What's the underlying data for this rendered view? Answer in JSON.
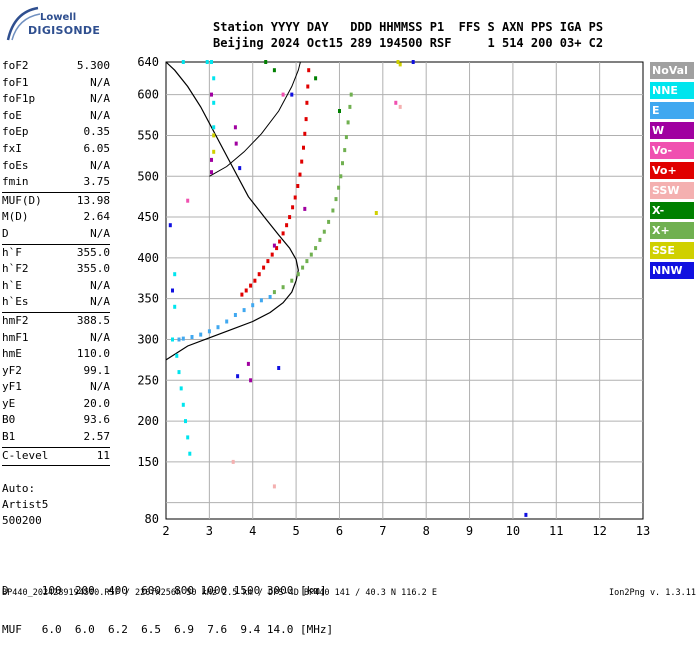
{
  "logo": {
    "line1": "Lowell",
    "line2": "DIGISONDE"
  },
  "header": {
    "line1": "Station YYYY DAY   DDD HHMMSS P1  FFS S AXN PPS IGA PS",
    "line2": "Beijing 2024 Oct15 289 194500 RSF     1 514 200 03+ C2"
  },
  "params_group1": [
    {
      "label": "foF2",
      "value": "5.300"
    },
    {
      "label": "foF1",
      "value": "N/A"
    },
    {
      "label": "foF1p",
      "value": "N/A"
    },
    {
      "label": "foE",
      "value": "N/A"
    },
    {
      "label": "foEp",
      "value": "0.35"
    },
    {
      "label": "fxI",
      "value": "6.05"
    },
    {
      "label": "foEs",
      "value": "N/A"
    },
    {
      "label": "fmin",
      "value": "3.75"
    }
  ],
  "params_group2": [
    {
      "label": "MUF(D)",
      "value": "13.98"
    },
    {
      "label": "M(D)",
      "value": "2.64"
    },
    {
      "label": "D",
      "value": "N/A"
    }
  ],
  "params_group3": [
    {
      "label": "h`F",
      "value": "355.0"
    },
    {
      "label": "h`F2",
      "value": "355.0"
    },
    {
      "label": "h`E",
      "value": "N/A"
    },
    {
      "label": "h`Es",
      "value": "N/A"
    }
  ],
  "params_group4": [
    {
      "label": "hmF2",
      "value": "388.5"
    },
    {
      "label": "hmF1",
      "value": "N/A"
    },
    {
      "label": "hmE",
      "value": "110.0"
    },
    {
      "label": "yF2",
      "value": "99.1"
    },
    {
      "label": "yF1",
      "value": "N/A"
    },
    {
      "label": "yE",
      "value": "20.0"
    },
    {
      "label": "B0",
      "value": "93.6"
    },
    {
      "label": "B1",
      "value": "2.57"
    }
  ],
  "params_group5": [
    {
      "label": "C-level",
      "value": "11"
    }
  ],
  "auto": {
    "line1": "Auto:",
    "line2": "Artist5",
    "line3": "500200"
  },
  "legend": [
    {
      "label": "NoVal",
      "color": "#a0a0a0"
    },
    {
      "label": "NNE",
      "color": "#00e5ee"
    },
    {
      "label": "E",
      "color": "#40a8f0"
    },
    {
      "label": "W",
      "color": "#a000a0"
    },
    {
      "label": "Vo-",
      "color": "#f050b0"
    },
    {
      "label": "Vo+",
      "color": "#e00000"
    },
    {
      "label": "SSW",
      "color": "#f4b0b0"
    },
    {
      "label": "X-",
      "color": "#008000"
    },
    {
      "label": "X+",
      "color": "#70b050"
    },
    {
      "label": "SSE",
      "color": "#d0d000"
    },
    {
      "label": "NNW",
      "color": "#1010e0"
    }
  ],
  "footer": {
    "dist_row": "D     100  200  400  600  800 1000 1500 3000 [km]",
    "muf_row": "MUF   6.0  6.0  6.2  6.5  6.9  7.6  9.4 14.0 [MHz]",
    "file_line": "BP440_2024289194500.RSF / 220fx256h 50 kHz 2.5 km / DPS-4D BP440 141 / 40.3 N 116.2 E",
    "version": "Ion2Png v. 1.3.11"
  },
  "chart_data": {
    "type": "scatter",
    "xlabel": "",
    "ylabel": "",
    "x_ticks": [
      2,
      3,
      4,
      5,
      6,
      7,
      8,
      9,
      10,
      11,
      12,
      13
    ],
    "y_ticks": [
      80,
      150,
      200,
      250,
      300,
      350,
      400,
      450,
      500,
      550,
      600,
      640
    ],
    "xlim": [
      2,
      13
    ],
    "ylim": [
      80,
      640
    ],
    "grid": true,
    "series": [
      {
        "name": "Vo+",
        "color": "#e00000",
        "points": [
          [
            3.75,
            355
          ],
          [
            3.85,
            360
          ],
          [
            3.95,
            366
          ],
          [
            4.05,
            372
          ],
          [
            4.15,
            380
          ],
          [
            4.25,
            388
          ],
          [
            4.35,
            396
          ],
          [
            4.45,
            404
          ],
          [
            4.55,
            412
          ],
          [
            4.62,
            420
          ],
          [
            4.7,
            430
          ],
          [
            4.78,
            440
          ],
          [
            4.85,
            450
          ],
          [
            4.92,
            462
          ],
          [
            4.98,
            474
          ],
          [
            5.04,
            488
          ],
          [
            5.09,
            502
          ],
          [
            5.13,
            518
          ],
          [
            5.17,
            535
          ],
          [
            5.2,
            552
          ],
          [
            5.23,
            570
          ],
          [
            5.25,
            590
          ],
          [
            5.27,
            610
          ],
          [
            5.29,
            630
          ]
        ]
      },
      {
        "name": "X+",
        "color": "#70b050",
        "points": [
          [
            4.5,
            358
          ],
          [
            4.7,
            364
          ],
          [
            4.9,
            372
          ],
          [
            5.05,
            380
          ],
          [
            5.15,
            388
          ],
          [
            5.25,
            396
          ],
          [
            5.35,
            404
          ],
          [
            5.45,
            412
          ],
          [
            5.55,
            422
          ],
          [
            5.65,
            432
          ],
          [
            5.75,
            444
          ],
          [
            5.85,
            458
          ],
          [
            5.92,
            472
          ],
          [
            5.98,
            486
          ],
          [
            6.03,
            500
          ],
          [
            6.07,
            516
          ],
          [
            6.12,
            532
          ],
          [
            6.16,
            548
          ],
          [
            6.2,
            566
          ],
          [
            6.24,
            585
          ],
          [
            6.27,
            600
          ]
        ]
      },
      {
        "name": "E",
        "color": "#40a8f0",
        "points": [
          [
            2.3,
            300
          ],
          [
            2.4,
            301
          ],
          [
            2.6,
            303
          ],
          [
            2.8,
            306
          ],
          [
            3.0,
            310
          ],
          [
            3.2,
            315
          ],
          [
            3.4,
            322
          ],
          [
            3.6,
            330
          ],
          [
            3.8,
            336
          ],
          [
            4.0,
            342
          ],
          [
            4.2,
            348
          ],
          [
            4.4,
            352
          ]
        ]
      },
      {
        "name": "NNE",
        "color": "#00e5ee",
        "points": [
          [
            2.15,
            300
          ],
          [
            2.25,
            280
          ],
          [
            2.3,
            260
          ],
          [
            2.35,
            240
          ],
          [
            2.4,
            220
          ],
          [
            2.45,
            200
          ],
          [
            2.5,
            180
          ],
          [
            2.55,
            160
          ],
          [
            2.2,
            340
          ],
          [
            2.2,
            380
          ],
          [
            3.1,
            560
          ],
          [
            3.1,
            590
          ],
          [
            3.1,
            620
          ],
          [
            3.05,
            640
          ],
          [
            2.95,
            640
          ],
          [
            2.4,
            640
          ]
        ]
      },
      {
        "name": "W",
        "color": "#a000a0",
        "points": [
          [
            3.05,
            520
          ],
          [
            3.05,
            505
          ],
          [
            3.05,
            600
          ],
          [
            3.9,
            270
          ],
          [
            3.95,
            250
          ],
          [
            3.6,
            560
          ],
          [
            3.62,
            540
          ],
          [
            4.5,
            415
          ],
          [
            5.2,
            460
          ]
        ]
      },
      {
        "name": "NNW",
        "color": "#1010e0",
        "points": [
          [
            2.1,
            440
          ],
          [
            2.15,
            360
          ],
          [
            3.65,
            255
          ],
          [
            4.6,
            265
          ],
          [
            10.3,
            85
          ],
          [
            3.7,
            510
          ],
          [
            4.9,
            600
          ],
          [
            7.7,
            640
          ]
        ]
      },
      {
        "name": "X-",
        "color": "#008000",
        "points": [
          [
            4.5,
            630
          ],
          [
            5.45,
            620
          ],
          [
            6.0,
            580
          ],
          [
            4.3,
            640
          ]
        ]
      },
      {
        "name": "SSE",
        "color": "#d0d000",
        "points": [
          [
            7.35,
            640
          ],
          [
            7.4,
            637
          ],
          [
            6.85,
            455
          ],
          [
            3.1,
            550
          ],
          [
            3.1,
            530
          ]
        ]
      },
      {
        "name": "Vo-",
        "color": "#f050b0",
        "points": [
          [
            2.5,
            470
          ],
          [
            4.7,
            600
          ],
          [
            7.3,
            590
          ]
        ]
      },
      {
        "name": "SSW",
        "color": "#f4b0b0",
        "points": [
          [
            7.4,
            585
          ],
          [
            3.55,
            150
          ],
          [
            4.5,
            120
          ]
        ]
      }
    ],
    "profile_curve_lower": [
      [
        2.0,
        275
      ],
      [
        2.5,
        292
      ],
      [
        3.0,
        302
      ],
      [
        3.5,
        312
      ],
      [
        4.0,
        322
      ],
      [
        4.4,
        333
      ],
      [
        4.7,
        345
      ],
      [
        4.9,
        358
      ],
      [
        5.0,
        372
      ],
      [
        5.05,
        385
      ],
      [
        5.0,
        398
      ],
      [
        4.85,
        412
      ],
      [
        4.6,
        428
      ],
      [
        4.3,
        448
      ],
      [
        3.9,
        475
      ],
      [
        3.5,
        515
      ],
      [
        3.1,
        555
      ],
      [
        2.8,
        585
      ],
      [
        2.5,
        610
      ],
      [
        2.2,
        630
      ],
      [
        2.0,
        640
      ]
    ],
    "profile_curve_upper": [
      [
        3.0,
        500
      ],
      [
        3.4,
        512
      ],
      [
        3.8,
        530
      ],
      [
        4.2,
        552
      ],
      [
        4.6,
        580
      ],
      [
        4.9,
        610
      ],
      [
        5.05,
        630
      ],
      [
        5.1,
        640
      ]
    ]
  }
}
